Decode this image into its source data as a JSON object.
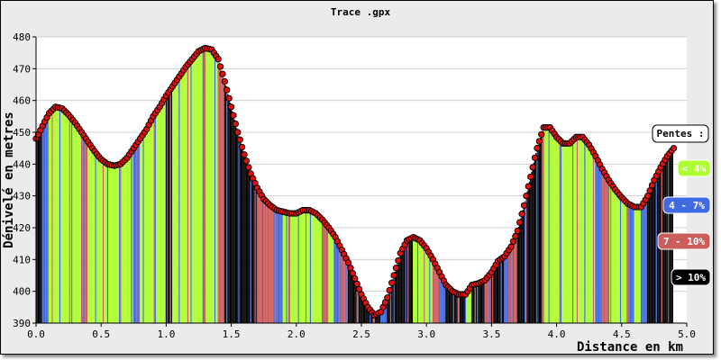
{
  "chart_data": {
    "type": "area",
    "title": "Trace .gpx",
    "xlabel": "Distance en km",
    "ylabel": "Dénivelé en metres",
    "xlim": [
      0.0,
      5.0
    ],
    "ylim": [
      390,
      480
    ],
    "xticks": [
      "0.0",
      "0.5",
      "1.0",
      "1.5",
      "2.0",
      "2.5",
      "3.0",
      "3.5",
      "4.0",
      "4.5",
      "5.0"
    ],
    "yticks": [
      "390",
      "400",
      "410",
      "420",
      "430",
      "440",
      "450",
      "460",
      "470",
      "480"
    ],
    "grid": "horizontal",
    "legend": {
      "title": "Pentes :",
      "placement": "right",
      "entries": [
        {
          "label": "< 4%",
          "color": "#adff2f",
          "text_color": "#ffffff"
        },
        {
          "label": "4 - 7%",
          "color": "#4169e1",
          "text_color": "#ffffff"
        },
        {
          "label": "7 - 10%",
          "color": "#cd5c5c",
          "text_color": "#ffffff"
        },
        {
          "label": "> 10%",
          "color": "#000000",
          "text_color": "#ffffff"
        }
      ]
    },
    "marker_color": "#e01010",
    "series": [
      {
        "x": [
          0.0,
          0.05,
          0.1,
          0.15,
          0.2,
          0.25,
          0.3,
          0.35,
          0.4,
          0.45,
          0.5,
          0.55,
          0.6,
          0.65,
          0.7,
          0.75,
          0.8,
          0.85,
          0.9,
          0.95,
          1.0,
          1.05,
          1.1,
          1.15,
          1.2,
          1.25,
          1.3,
          1.35,
          1.4,
          1.45,
          1.5,
          1.55,
          1.6,
          1.65,
          1.7,
          1.75,
          1.8,
          1.85,
          1.9,
          1.95,
          2.0,
          2.05,
          2.1,
          2.15,
          2.2,
          2.25,
          2.3,
          2.35,
          2.4,
          2.45,
          2.5,
          2.55,
          2.6,
          2.65,
          2.7,
          2.75,
          2.8,
          2.85,
          2.9,
          2.95,
          3.0,
          3.05,
          3.1,
          3.15,
          3.2,
          3.25,
          3.3,
          3.35,
          3.4,
          3.45,
          3.5,
          3.55,
          3.6,
          3.65,
          3.7,
          3.75,
          3.8,
          3.85,
          3.9,
          3.95,
          4.0,
          4.05,
          4.1,
          4.15,
          4.2,
          4.25,
          4.3,
          4.35,
          4.4,
          4.45,
          4.5,
          4.55,
          4.6,
          4.65,
          4.7,
          4.75,
          4.8,
          4.85,
          4.9
        ],
        "y": [
          448,
          452,
          456,
          458,
          457.5,
          455.5,
          453,
          450,
          447,
          444,
          441.5,
          440,
          439.5,
          440,
          442,
          445,
          448,
          451,
          455,
          458,
          461.5,
          464.5,
          467.5,
          470.5,
          473,
          475.5,
          476.5,
          476,
          473,
          466,
          458,
          450,
          443,
          437,
          432.5,
          429,
          427,
          425.5,
          425,
          424.5,
          424.5,
          425.5,
          425.5,
          424.5,
          422.5,
          420,
          417,
          413,
          409,
          404,
          399,
          395,
          392.5,
          393.5,
          398,
          405,
          412,
          416,
          417,
          416,
          413.5,
          410,
          406,
          402,
          400,
          399,
          399,
          402,
          402.5,
          403.5,
          406,
          409.5,
          411,
          414,
          419,
          427,
          436,
          445,
          451.5,
          451.5,
          448.5,
          446.5,
          446.5,
          448.5,
          448.5,
          446,
          442.5,
          438.5,
          435,
          432,
          429.5,
          427.5,
          426.5,
          426.5,
          430,
          435,
          439,
          442.5,
          445
        ],
        "slope_class": [
          3,
          1,
          0,
          0,
          0,
          0,
          0,
          2,
          0,
          0,
          0,
          0,
          0,
          0,
          0,
          1,
          0,
          0,
          0,
          0,
          3,
          0,
          0,
          0,
          0,
          0,
          0,
          0,
          2,
          3,
          3,
          3,
          3,
          3,
          2,
          2,
          2,
          1,
          0,
          0,
          0,
          0,
          0,
          0,
          2,
          0,
          1,
          2,
          3,
          3,
          3,
          3,
          3,
          1,
          3,
          3,
          3,
          3,
          0,
          0,
          0,
          2,
          1,
          3,
          3,
          3,
          0,
          3,
          3,
          2,
          3,
          3,
          1,
          2,
          3,
          3,
          3,
          3,
          0,
          0,
          0,
          0,
          0,
          0,
          0,
          0,
          1,
          2,
          0,
          0,
          0,
          1,
          0,
          1,
          3,
          3,
          3,
          3,
          3
        ]
      }
    ]
  }
}
